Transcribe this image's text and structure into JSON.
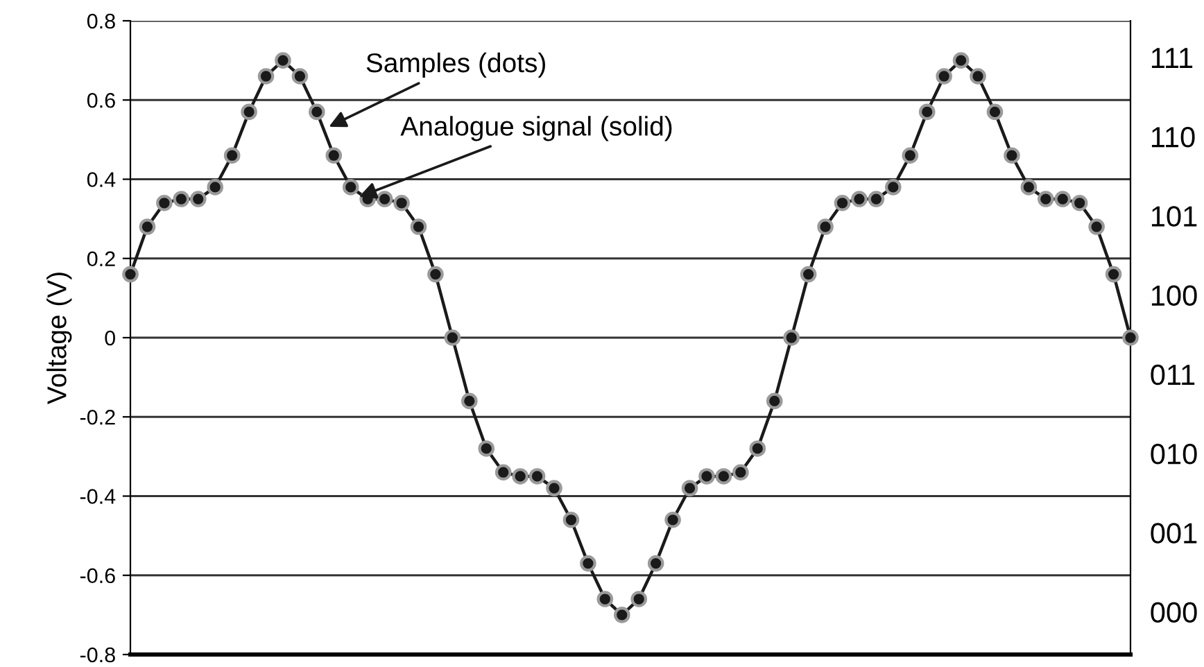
{
  "chart_data": {
    "type": "line",
    "ylabel": "Voltage (V)",
    "categories": [
      null,
      null,
      null,
      null,
      null,
      null,
      null,
      null,
      null,
      null,
      null,
      null,
      null,
      null,
      null,
      null,
      null,
      null,
      null,
      null,
      null,
      null,
      null,
      null,
      null,
      null,
      null,
      null,
      null,
      null,
      null,
      null,
      null,
      null,
      null,
      null,
      null,
      null,
      null,
      null,
      null,
      null,
      null,
      null,
      null,
      null,
      null,
      null,
      null,
      null,
      null,
      null,
      null,
      null,
      null,
      null,
      null,
      null,
      null,
      null
    ],
    "series": [
      {
        "color": "#1a1a1a",
        "values": [
          0.16,
          0.28,
          0.34,
          0.35,
          0.35,
          0.38,
          0.46,
          0.57,
          0.66,
          0.7,
          0.66,
          0.57,
          0.46,
          0.38,
          0.35,
          0.35,
          0.34,
          0.28,
          0.16,
          0.0,
          -0.16,
          -0.28,
          -0.34,
          -0.35,
          -0.35,
          -0.38,
          -0.46,
          -0.57,
          -0.66,
          -0.7,
          -0.66,
          -0.57,
          -0.46,
          -0.38,
          -0.35,
          -0.35,
          -0.34,
          -0.28,
          -0.16,
          0.0,
          0.16,
          0.28,
          0.34,
          0.35,
          0.35,
          0.38,
          0.46,
          0.57,
          0.66,
          0.7,
          0.66,
          0.57,
          0.46,
          0.38,
          0.35,
          0.35,
          0.34,
          0.28,
          0.16,
          0.0
        ]
      }
    ],
    "marker": "circle",
    "line_style": "solid",
    "grid": "y",
    "ylim": [
      -0.8,
      0.8
    ],
    "yticks": [
      {
        "value": -0.8,
        "label": "-0.8"
      },
      {
        "value": -0.6,
        "label": "-0.6"
      },
      {
        "value": -0.4,
        "label": "-0.4"
      },
      {
        "value": -0.2,
        "label": "-0.2"
      },
      {
        "value": 0,
        "label": "0"
      },
      0.2,
      0.4,
      0.6,
      0.8
    ],
    "tick_labels": "y",
    "annotations": [
      "Samples (dots)",
      "Analogue signal (solid)",
      "111",
      "110",
      "101",
      "100",
      "011",
      "010",
      "001",
      "000"
    ]
  }
}
